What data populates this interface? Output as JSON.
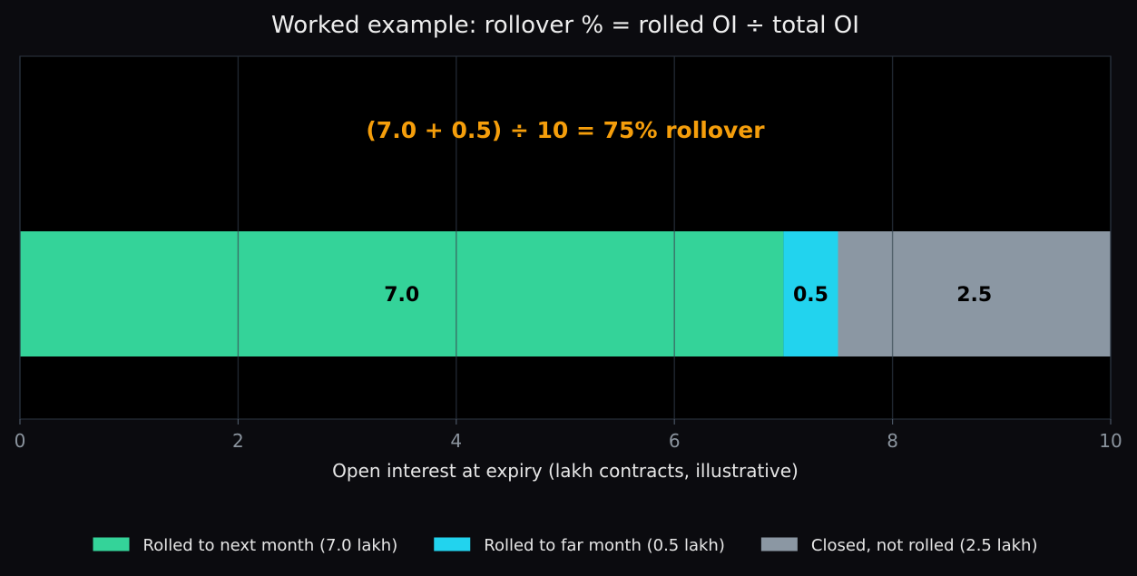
{
  "chart_data": {
    "type": "bar",
    "orientation": "horizontal",
    "stacked": true,
    "title": "Worked example: rollover % = rolled OI ÷ total OI",
    "annotation": "(7.0 + 0.5) ÷ 10 = 75% rollover",
    "xlabel": "Open interest at expiry (lakh contracts, illustrative)",
    "ylabel": "",
    "xlim": [
      0,
      10
    ],
    "xticks": [
      0,
      2,
      4,
      6,
      8,
      10
    ],
    "xtick_labels": [
      "0",
      "2",
      "4",
      "6",
      "8",
      "10"
    ],
    "grid": true,
    "legend_position": "bottom-center",
    "categories": [
      ""
    ],
    "series": [
      {
        "name": "Rolled to next month (7.0 lakh)",
        "values": [
          7.0
        ],
        "data_label": "7.0",
        "color": "#34d399"
      },
      {
        "name": "Rolled to far month (0.5 lakh)",
        "values": [
          0.5
        ],
        "data_label": "0.5",
        "color": "#22d3ee"
      },
      {
        "name": "Closed, not rolled (2.5 lakh)",
        "values": [
          2.5
        ],
        "data_label": "2.5",
        "color": "#8b97a3"
      }
    ],
    "colors": {
      "background": "#0b0b0f",
      "plot_background": "#000000",
      "grid": "#1f2630",
      "title_text": "#eeeeee",
      "annotation_text": "#f59e0b",
      "tick_text": "#8b949e",
      "label_text": "#e6e6e6",
      "data_label_text": "#000000"
    }
  }
}
